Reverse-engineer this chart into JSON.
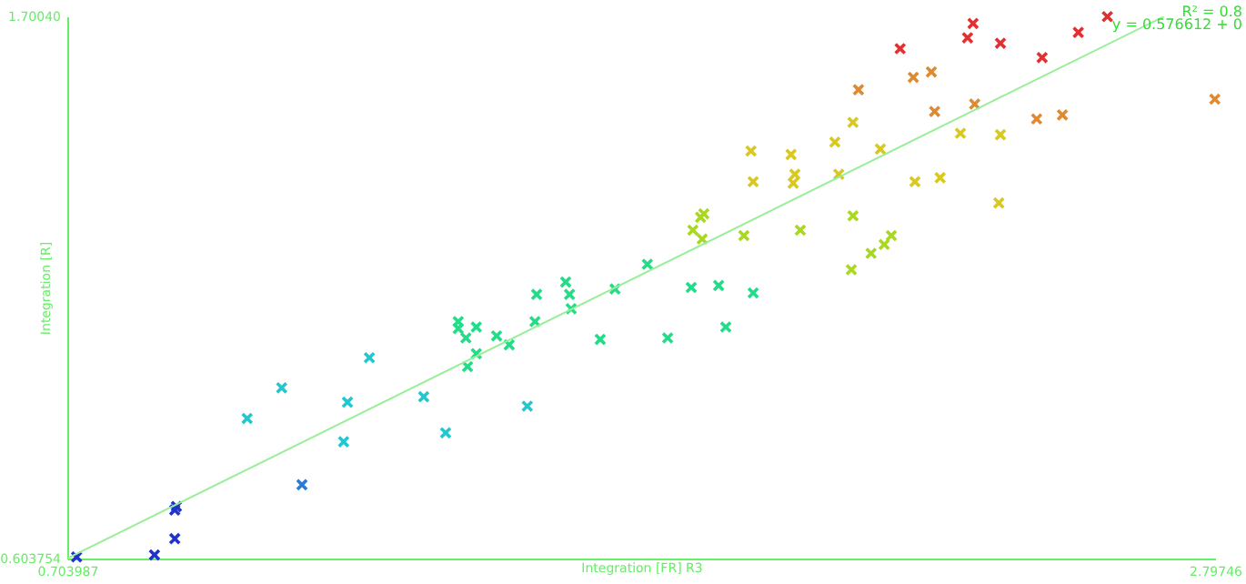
{
  "chart_data": {
    "type": "scatter",
    "xlabel": "Integration [FR] R3",
    "ylabel": "Integration [R]",
    "annotations": [
      "R² = 0.8",
      "y = 0.576612 + 0"
    ],
    "xlim": [
      0.703987,
      2.79746
    ],
    "ylim": [
      0.603754,
      1.7004
    ],
    "xticks": [
      {
        "value": 0.703987,
        "label": "0.703987"
      },
      {
        "value": 2.79746,
        "label": "2.79746"
      }
    ],
    "yticks": [
      {
        "value": 0.603754,
        "label": "0.603754"
      },
      {
        "value": 1.7004,
        "label": "1.70040"
      }
    ],
    "grid": false,
    "marker": "cross",
    "series": [
      {
        "color": "#2233cc",
        "x": [
          0.721,
          0.863,
          0.9,
          0.9,
          0.903
        ],
        "values": [
          0.607,
          0.611,
          0.644,
          0.702,
          0.709
        ]
      },
      {
        "color": "#2a7ad8",
        "x": [
          1.132
        ],
        "values": [
          0.753
        ]
      },
      {
        "color": "#22c8d0",
        "x": [
          1.032,
          1.095,
          1.208,
          1.215,
          1.255,
          1.354,
          1.394,
          1.543
        ],
        "values": [
          0.887,
          0.949,
          0.84,
          0.92,
          1.01,
          0.931,
          0.858,
          0.912
        ]
      },
      {
        "color": "#22dd88",
        "x": [
          1.417,
          1.417,
          1.431,
          1.45,
          1.434,
          1.45,
          1.487,
          1.51,
          1.557,
          1.56,
          1.613,
          1.62,
          1.623,
          1.676,
          1.703,
          1.762,
          1.799,
          1.842,
          1.892,
          1.905,
          1.955
        ],
        "values": [
          1.083,
          1.069,
          1.05,
          1.072,
          0.992,
          1.018,
          1.054,
          1.036,
          1.083,
          1.138,
          1.163,
          1.138,
          1.109,
          1.047,
          1.149,
          1.199,
          1.05,
          1.152,
          1.156,
          1.072,
          1.141
        ]
      },
      {
        "color": "#a8d820",
        "x": [
          1.845,
          1.859,
          1.862,
          1.865,
          1.938,
          2.041,
          2.134,
          2.137,
          2.17,
          2.194,
          2.207
        ],
        "values": [
          1.268,
          1.294,
          1.25,
          1.301,
          1.257,
          1.268,
          1.188,
          1.297,
          1.221,
          1.239,
          1.257
        ]
      },
      {
        "color": "#d8c820",
        "x": [
          1.951,
          1.955,
          2.024,
          2.028,
          2.031,
          2.104,
          2.111,
          2.137,
          2.187,
          2.25,
          2.296,
          2.333,
          2.403,
          2.406
        ],
        "values": [
          1.428,
          1.366,
          1.421,
          1.363,
          1.381,
          1.446,
          1.381,
          1.486,
          1.432,
          1.366,
          1.374,
          1.464,
          1.323,
          1.461
        ]
      },
      {
        "color": "#e08a30",
        "x": [
          2.147,
          2.247,
          2.28,
          2.286,
          2.359,
          2.472,
          2.519,
          2.797
        ],
        "values": [
          1.552,
          1.577,
          1.588,
          1.508,
          1.523,
          1.493,
          1.501,
          1.533
        ]
      },
      {
        "color": "#e03030",
        "x": [
          2.223,
          2.346,
          2.356,
          2.406,
          2.482,
          2.548,
          2.601
        ],
        "values": [
          1.635,
          1.657,
          1.686,
          1.646,
          1.617,
          1.668,
          1.7
        ]
      },
      {
        "type": "line",
        "marker": "none",
        "color": "#99ee99",
        "x": [
          0.704,
          2.704
        ],
        "values": [
          0.604,
          1.7
        ]
      }
    ]
  }
}
